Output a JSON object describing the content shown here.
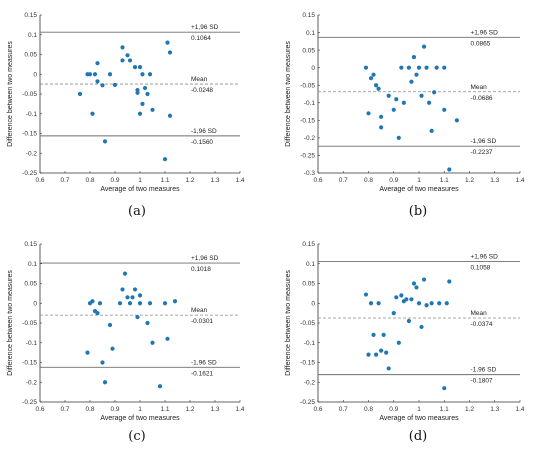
{
  "chart_data": [
    {
      "type": "scatter",
      "panel_label": "(a)",
      "xlabel": "Average of two measures",
      "ylabel": "Difference between two measures",
      "xlim": [
        0.6,
        1.4
      ],
      "ylim": [
        -0.25,
        0.15
      ],
      "xticks": [
        0.6,
        0.7,
        0.8,
        0.9,
        1,
        1.1,
        1.2,
        1.3,
        1.4
      ],
      "yticks": [
        -0.25,
        -0.2,
        -0.15,
        -0.1,
        -0.05,
        0,
        0.05,
        0.1,
        0.15
      ],
      "xtick_labels": [
        "0.6",
        "0.7",
        "0.8",
        "0.9",
        "1",
        "1.1",
        "1.2",
        "1.3",
        "1.4"
      ],
      "ytick_labels": [
        "-0.25",
        "-0.2",
        "-0.15",
        "-0.1",
        "-0.05",
        "0",
        "0.05",
        "0.1",
        "0.15"
      ],
      "upper_loa": {
        "label": "+1,96 SD",
        "value": 0.1064,
        "value_text": "0.1064"
      },
      "mean": {
        "label": "Mean",
        "value": -0.0248,
        "value_text": "-0.0248"
      },
      "lower_loa": {
        "label": "-1,96 SD",
        "value": -0.156,
        "value_text": "-0.1560"
      },
      "points": [
        [
          0.76,
          -0.05
        ],
        [
          0.79,
          0.0
        ],
        [
          0.8,
          0.0
        ],
        [
          0.81,
          -0.1
        ],
        [
          0.82,
          0.0
        ],
        [
          0.83,
          0.028
        ],
        [
          0.83,
          -0.018
        ],
        [
          0.85,
          -0.028
        ],
        [
          0.86,
          -0.17
        ],
        [
          0.88,
          0.0
        ],
        [
          0.9,
          -0.027
        ],
        [
          0.93,
          0.068
        ],
        [
          0.93,
          0.035
        ],
        [
          0.95,
          0.048
        ],
        [
          0.96,
          0.035
        ],
        [
          0.98,
          0.018
        ],
        [
          0.99,
          -0.04
        ],
        [
          0.99,
          -0.047
        ],
        [
          1.0,
          0.018
        ],
        [
          1.0,
          -0.1
        ],
        [
          1.01,
          0.0
        ],
        [
          1.01,
          -0.075
        ],
        [
          1.02,
          -0.035
        ],
        [
          1.03,
          -0.05
        ],
        [
          1.04,
          0.0
        ],
        [
          1.05,
          -0.09
        ],
        [
          1.1,
          -0.215
        ],
        [
          1.11,
          0.08
        ],
        [
          1.12,
          -0.105
        ],
        [
          1.12,
          0.055
        ]
      ],
      "color": "#1f77b4"
    },
    {
      "type": "scatter",
      "panel_label": "(b)",
      "xlabel": "Average of two measures",
      "ylabel": "Difference between two measures",
      "xlim": [
        0.6,
        1.4
      ],
      "ylim": [
        -0.3,
        0.15
      ],
      "xticks": [
        0.6,
        0.7,
        0.8,
        0.9,
        1,
        1.1,
        1.2,
        1.3,
        1.4
      ],
      "yticks": [
        -0.3,
        -0.25,
        -0.2,
        -0.15,
        -0.1,
        -0.05,
        0,
        0.05,
        0.1,
        0.15
      ],
      "xtick_labels": [
        "0.6",
        "0.7",
        "0.8",
        "0.9",
        "1",
        "1.1",
        "1.2",
        "1.3",
        "1.4"
      ],
      "ytick_labels": [
        "-0.3",
        "-0.25",
        "-0.2",
        "-0.15",
        "-0.1",
        "-0.05",
        "0",
        "0.05",
        "0.1",
        "0.15"
      ],
      "upper_loa": {
        "label": "+1,96 SD",
        "value": 0.0865,
        "value_text": "0.0865"
      },
      "mean": {
        "label": "Mean",
        "value": -0.0686,
        "value_text": "-0.0686"
      },
      "lower_loa": {
        "label": "-1,96 SD",
        "value": -0.2237,
        "value_text": "-0.2237"
      },
      "points": [
        [
          0.79,
          0.0
        ],
        [
          0.8,
          -0.13
        ],
        [
          0.81,
          -0.03
        ],
        [
          0.82,
          -0.02
        ],
        [
          0.83,
          -0.05
        ],
        [
          0.84,
          -0.06
        ],
        [
          0.85,
          -0.14
        ],
        [
          0.85,
          -0.17
        ],
        [
          0.88,
          -0.08
        ],
        [
          0.9,
          -0.12
        ],
        [
          0.91,
          -0.09
        ],
        [
          0.92,
          -0.2
        ],
        [
          0.93,
          0.0
        ],
        [
          0.94,
          -0.1
        ],
        [
          0.96,
          0.0
        ],
        [
          0.97,
          -0.04
        ],
        [
          0.98,
          0.03
        ],
        [
          0.99,
          -0.02
        ],
        [
          1.0,
          0.0
        ],
        [
          1.01,
          -0.08
        ],
        [
          1.02,
          0.06
        ],
        [
          1.03,
          0.0
        ],
        [
          1.04,
          -0.1
        ],
        [
          1.05,
          -0.18
        ],
        [
          1.06,
          -0.07
        ],
        [
          1.07,
          0.0
        ],
        [
          1.1,
          0.0
        ],
        [
          1.1,
          -0.12
        ],
        [
          1.12,
          -0.29
        ],
        [
          1.15,
          -0.15
        ]
      ],
      "color": "#1f77b4"
    },
    {
      "type": "scatter",
      "panel_label": "(c)",
      "xlabel": "Average of two measures",
      "ylabel": "Difference between two measures",
      "xlim": [
        0.6,
        1.4
      ],
      "ylim": [
        -0.25,
        0.15
      ],
      "xticks": [
        0.6,
        0.7,
        0.8,
        0.9,
        1,
        1.1,
        1.2,
        1.3,
        1.4
      ],
      "yticks": [
        -0.25,
        -0.2,
        -0.15,
        -0.1,
        -0.05,
        0,
        0.05,
        0.1,
        0.15
      ],
      "xtick_labels": [
        "0.6",
        "0.7",
        "0.8",
        "0.9",
        "1",
        "1.1",
        "1.2",
        "1.3",
        "1.4"
      ],
      "ytick_labels": [
        "-0.25",
        "-0.2",
        "-0.15",
        "-0.1",
        "-0.05",
        "0",
        "0.05",
        "0.1",
        "0.15"
      ],
      "upper_loa": {
        "label": "+1,96 SD",
        "value": 0.1018,
        "value_text": "0.1018"
      },
      "mean": {
        "label": "Mean",
        "value": -0.0301,
        "value_text": "-0.0301"
      },
      "lower_loa": {
        "label": "-1,96 SD",
        "value": -0.1621,
        "value_text": "-0.1621"
      },
      "points": [
        [
          0.79,
          -0.125
        ],
        [
          0.8,
          0.0
        ],
        [
          0.81,
          0.005
        ],
        [
          0.82,
          -0.02
        ],
        [
          0.83,
          -0.025
        ],
        [
          0.84,
          0.0
        ],
        [
          0.85,
          -0.15
        ],
        [
          0.86,
          -0.2
        ],
        [
          0.88,
          -0.055
        ],
        [
          0.89,
          -0.115
        ],
        [
          0.92,
          0.0
        ],
        [
          0.93,
          0.035
        ],
        [
          0.94,
          0.075
        ],
        [
          0.95,
          0.015
        ],
        [
          0.96,
          0.0
        ],
        [
          0.97,
          0.015
        ],
        [
          0.98,
          0.035
        ],
        [
          0.99,
          -0.035
        ],
        [
          1.0,
          0.02
        ],
        [
          1.0,
          0.0
        ],
        [
          1.03,
          -0.05
        ],
        [
          1.04,
          0.0
        ],
        [
          1.05,
          -0.1
        ],
        [
          1.08,
          -0.21
        ],
        [
          1.1,
          0.0
        ],
        [
          1.11,
          -0.09
        ],
        [
          1.14,
          0.005
        ]
      ],
      "color": "#1f77b4"
    },
    {
      "type": "scatter",
      "panel_label": "(d)",
      "xlabel": "Average of two measures",
      "ylabel": "Difference between two measures",
      "xlim": [
        0.6,
        1.4
      ],
      "ylim": [
        -0.25,
        0.15
      ],
      "xticks": [
        0.6,
        0.7,
        0.8,
        0.9,
        1,
        1.1,
        1.2,
        1.3,
        1.4
      ],
      "yticks": [
        -0.25,
        -0.2,
        -0.15,
        -0.1,
        -0.05,
        0,
        0.05,
        0.1,
        0.15
      ],
      "xtick_labels": [
        "0.6",
        "0.7",
        "0.8",
        "0.9",
        "1",
        "1.1",
        "1.2",
        "1.3",
        "1.4"
      ],
      "ytick_labels": [
        "-0.25",
        "-0.2",
        "-0.15",
        "-0.1",
        "-0.05",
        "0",
        "0.05",
        "0.1",
        "0.15"
      ],
      "upper_loa": {
        "label": "+1,96 SD",
        "value": 0.1058,
        "value_text": "0.1058"
      },
      "mean": {
        "label": "Mean",
        "value": -0.0374,
        "value_text": "-0.0374"
      },
      "lower_loa": {
        "label": "-1,96 SD",
        "value": -0.1807,
        "value_text": "-0.1807"
      },
      "points": [
        [
          0.79,
          0.022
        ],
        [
          0.8,
          -0.13
        ],
        [
          0.81,
          0.0
        ],
        [
          0.82,
          -0.08
        ],
        [
          0.83,
          -0.13
        ],
        [
          0.84,
          0.0
        ],
        [
          0.85,
          -0.12
        ],
        [
          0.86,
          -0.08
        ],
        [
          0.87,
          -0.125
        ],
        [
          0.88,
          -0.165
        ],
        [
          0.9,
          -0.025
        ],
        [
          0.91,
          0.015
        ],
        [
          0.92,
          -0.1
        ],
        [
          0.93,
          0.02
        ],
        [
          0.94,
          0.005
        ],
        [
          0.95,
          0.01
        ],
        [
          0.96,
          -0.045
        ],
        [
          0.97,
          0.01
        ],
        [
          0.98,
          0.05
        ],
        [
          0.99,
          0.04
        ],
        [
          1.0,
          0.0
        ],
        [
          1.01,
          -0.06
        ],
        [
          1.02,
          0.06
        ],
        [
          1.03,
          -0.005
        ],
        [
          1.05,
          0.0
        ],
        [
          1.08,
          0.0
        ],
        [
          1.1,
          -0.215
        ],
        [
          1.11,
          0.0
        ],
        [
          1.12,
          0.055
        ]
      ],
      "color": "#1f77b4"
    }
  ]
}
